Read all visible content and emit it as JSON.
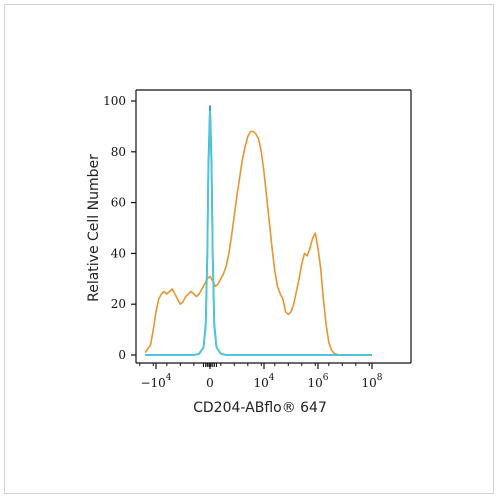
{
  "chart_data": {
    "type": "line",
    "xlabel": "CD204-ABflo® 647",
    "ylabel": "Relative Cell Number",
    "ylim": [
      0,
      100
    ],
    "yticks": [
      0,
      20,
      40,
      60,
      80,
      100
    ],
    "xscale": "biexponential",
    "xticks": [
      {
        "base": "−10",
        "exp": "4",
        "pos": -1
      },
      {
        "base": "0",
        "exp": "",
        "pos": 0
      },
      {
        "base": "10",
        "exp": "4",
        "pos": 1
      },
      {
        "base": "10",
        "exp": "6",
        "pos": 2
      },
      {
        "base": "10",
        "exp": "8",
        "pos": 3
      }
    ],
    "grid": false,
    "series": [
      {
        "color": "#E8962E",
        "points": [
          [
            -1.2,
            1
          ],
          [
            -1.1,
            4
          ],
          [
            -1.05,
            10
          ],
          [
            -1.0,
            17
          ],
          [
            -0.95,
            22
          ],
          [
            -0.9,
            24
          ],
          [
            -0.85,
            25
          ],
          [
            -0.8,
            24
          ],
          [
            -0.75,
            25
          ],
          [
            -0.7,
            26
          ],
          [
            -0.65,
            24
          ],
          [
            -0.6,
            22
          ],
          [
            -0.55,
            20
          ],
          [
            -0.5,
            21
          ],
          [
            -0.45,
            23
          ],
          [
            -0.4,
            24
          ],
          [
            -0.35,
            25
          ],
          [
            -0.3,
            24
          ],
          [
            -0.25,
            23
          ],
          [
            -0.2,
            24
          ],
          [
            -0.15,
            26
          ],
          [
            -0.1,
            28
          ],
          [
            -0.05,
            30
          ],
          [
            0.0,
            31
          ],
          [
            0.05,
            29
          ],
          [
            0.1,
            27
          ],
          [
            0.15,
            28
          ],
          [
            0.2,
            30
          ],
          [
            0.25,
            32
          ],
          [
            0.3,
            35
          ],
          [
            0.35,
            40
          ],
          [
            0.4,
            47
          ],
          [
            0.45,
            55
          ],
          [
            0.5,
            63
          ],
          [
            0.55,
            70
          ],
          [
            0.6,
            77
          ],
          [
            0.65,
            82
          ],
          [
            0.7,
            86
          ],
          [
            0.75,
            88
          ],
          [
            0.8,
            88
          ],
          [
            0.85,
            87
          ],
          [
            0.9,
            85
          ],
          [
            0.95,
            80
          ],
          [
            1.0,
            72
          ],
          [
            1.05,
            62
          ],
          [
            1.1,
            52
          ],
          [
            1.15,
            42
          ],
          [
            1.2,
            33
          ],
          [
            1.25,
            27
          ],
          [
            1.3,
            24
          ],
          [
            1.35,
            22
          ],
          [
            1.4,
            17
          ],
          [
            1.45,
            16
          ],
          [
            1.5,
            17
          ],
          [
            1.55,
            20
          ],
          [
            1.6,
            25
          ],
          [
            1.65,
            30
          ],
          [
            1.7,
            36
          ],
          [
            1.75,
            40
          ],
          [
            1.8,
            39
          ],
          [
            1.85,
            42
          ],
          [
            1.9,
            46
          ],
          [
            1.95,
            48
          ],
          [
            2.0,
            42
          ],
          [
            2.05,
            34
          ],
          [
            2.1,
            22
          ],
          [
            2.15,
            12
          ],
          [
            2.2,
            5
          ],
          [
            2.25,
            2
          ],
          [
            2.3,
            0.5
          ],
          [
            2.4,
            0
          ],
          [
            3.0,
            0
          ]
        ]
      },
      {
        "color": "#2A8FD6",
        "points": [
          [
            -1.2,
            0
          ],
          [
            -0.3,
            0
          ],
          [
            -0.2,
            0.5
          ],
          [
            -0.12,
            3
          ],
          [
            -0.08,
            12
          ],
          [
            -0.05,
            40
          ],
          [
            -0.03,
            75
          ],
          [
            0.0,
            98
          ],
          [
            0.03,
            75
          ],
          [
            0.05,
            40
          ],
          [
            0.08,
            12
          ],
          [
            0.12,
            3
          ],
          [
            0.2,
            0.5
          ],
          [
            0.3,
            0
          ],
          [
            3.0,
            0
          ]
        ]
      },
      {
        "color": "#4EC7D9",
        "points": [
          [
            -1.2,
            0
          ],
          [
            -0.3,
            0
          ],
          [
            -0.2,
            0.5
          ],
          [
            -0.12,
            3
          ],
          [
            -0.08,
            11
          ],
          [
            -0.05,
            38
          ],
          [
            -0.03,
            72
          ],
          [
            0.0,
            96
          ],
          [
            0.03,
            72
          ],
          [
            0.05,
            38
          ],
          [
            0.08,
            11
          ],
          [
            0.12,
            3
          ],
          [
            0.2,
            0.5
          ],
          [
            0.3,
            0
          ],
          [
            3.0,
            0
          ]
        ]
      }
    ]
  }
}
